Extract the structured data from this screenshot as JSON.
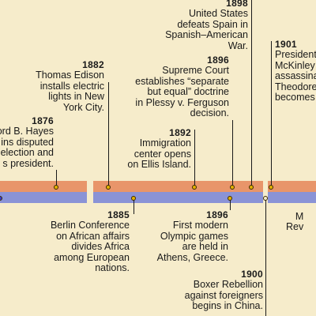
{
  "colors": {
    "top_band": "#e8956a",
    "bottom_band": "#8a93d6",
    "marker": "#e3b100",
    "background": "#f6eccb"
  },
  "events_top": [
    {
      "year": "1876",
      "text": "ord B. Hayes\nins disputed\nelection and\ns president."
    },
    {
      "year": "1882",
      "text": "Thomas Edison\ninstalls electric\nlights in New\nYork City."
    },
    {
      "year": "1892",
      "text": "Immigration\ncenter opens\non Ellis Island."
    },
    {
      "year": "1896",
      "text": "Supreme Court\nestablishes “separate\nbut equal” doctrine\nin Plessy v. Ferguson\ndecision."
    },
    {
      "year": "1898",
      "text": "United States\ndefeats Spain in\nSpanish–American\nWar."
    },
    {
      "year": "1901",
      "text": "President\nMcKinley\nassassina\nTheodore\nbecomes"
    }
  ],
  "events_bottom": [
    {
      "year": "1885",
      "text": "Berlin Conference\non African affairs\ndivides Africa\namong European\nnations."
    },
    {
      "year": "1896",
      "text": "First modern\nOlympic games\nare held in\nAthens, Greece."
    },
    {
      "year": "1900",
      "text": "Boxer Rebellion\nagainst foreigners\nbegins in China."
    },
    {
      "year": "",
      "text": "M\nRev"
    }
  ]
}
